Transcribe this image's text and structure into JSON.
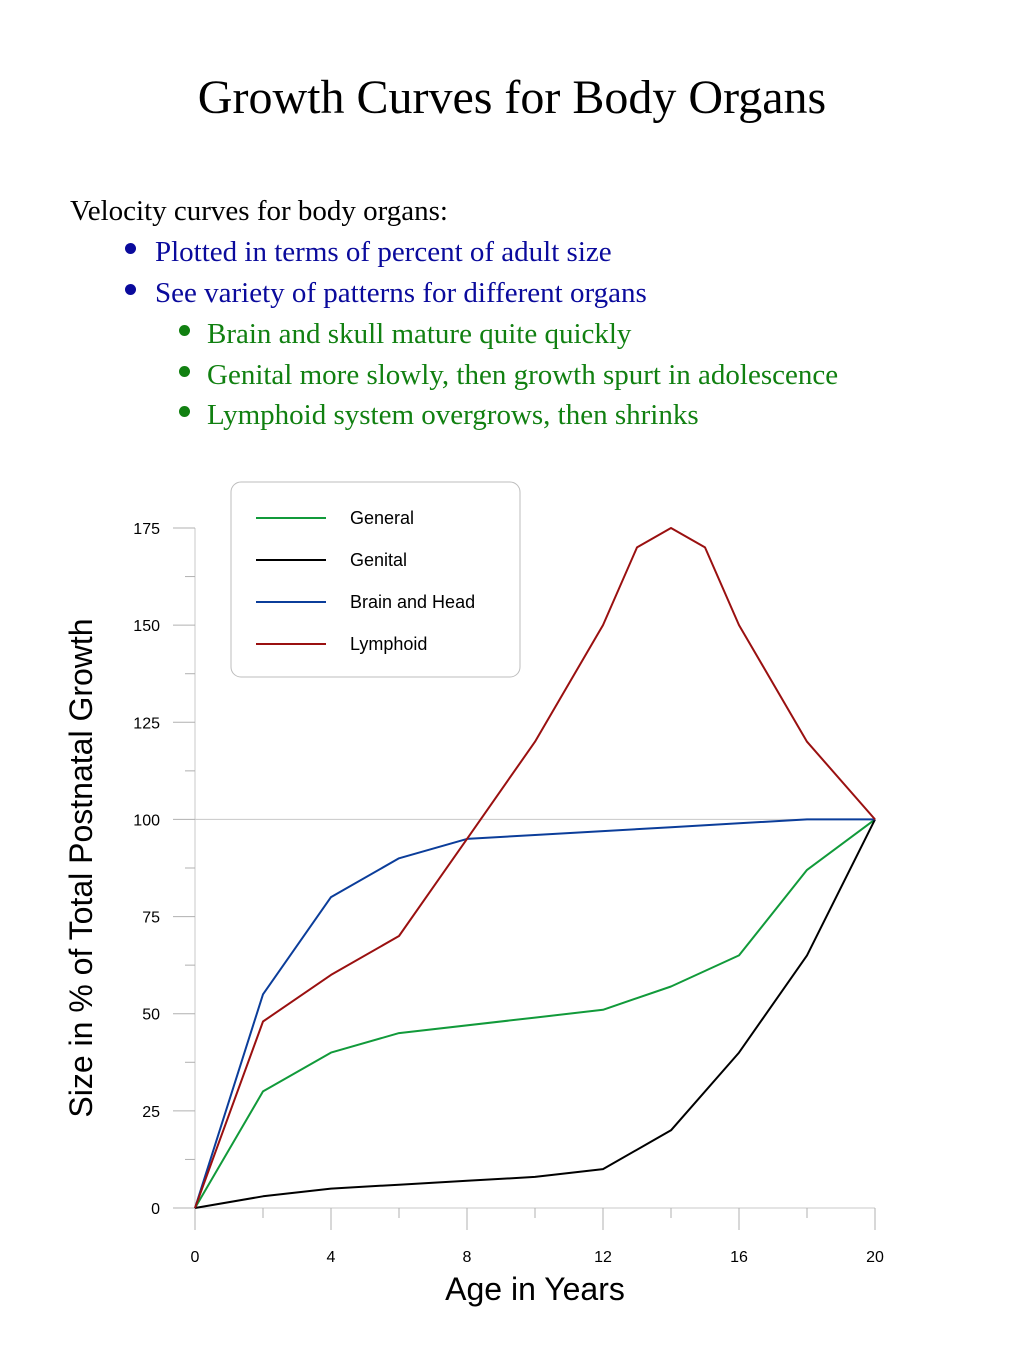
{
  "slide": {
    "title": "Growth Curves for Body Organs",
    "intro": "Velocity curves for body organs:",
    "bullets": [
      {
        "text": "Plotted in terms of percent of adult size",
        "level": 1
      },
      {
        "text": "See variety of patterns for different organs",
        "level": 1
      },
      {
        "text": "Brain and skull mature quite quickly",
        "level": 2
      },
      {
        "text": "Genital more slowly, then growth spurt in adolescence",
        "level": 2
      },
      {
        "text": "Lymphoid system overgrows, then shrinks",
        "level": 2
      }
    ],
    "colors": {
      "level1": "#0a0a9c",
      "level2": "#118011",
      "text": "#000000"
    }
  },
  "chart_data": {
    "type": "line",
    "title": "",
    "xlabel": "Age in Years",
    "ylabel": "Size in % of Total Postnatal Growth",
    "xlim": [
      0,
      20
    ],
    "ylim": [
      0,
      175
    ],
    "x_ticks": [
      0,
      4,
      8,
      12,
      16,
      20
    ],
    "y_ticks": [
      0,
      25,
      50,
      75,
      100,
      125,
      150,
      175
    ],
    "reference_line_y": 100,
    "legend_position": "top-left",
    "series": [
      {
        "name": "General",
        "color": "#119a3a",
        "x": [
          0,
          2,
          4,
          6,
          10,
          12,
          14,
          16,
          18,
          20
        ],
        "y": [
          0,
          30,
          40,
          45,
          49,
          51,
          57,
          65,
          87,
          100
        ]
      },
      {
        "name": "Genital",
        "color": "#000000",
        "x": [
          0,
          2,
          4,
          6,
          8,
          10,
          12,
          14,
          16,
          18,
          20
        ],
        "y": [
          0,
          3,
          5,
          6,
          7,
          8,
          10,
          20,
          40,
          65,
          100
        ]
      },
      {
        "name": "Brain and Head",
        "color": "#0b3d9a",
        "x": [
          0,
          2,
          4,
          6,
          8,
          10,
          12,
          14,
          16,
          18,
          20
        ],
        "y": [
          0,
          55,
          80,
          90,
          95,
          96,
          97,
          98,
          99,
          100,
          100
        ]
      },
      {
        "name": "Lymphoid",
        "color": "#9a1010",
        "x": [
          0,
          2,
          4,
          6,
          8,
          10,
          12,
          13,
          14,
          15,
          16,
          18,
          20
        ],
        "y": [
          0,
          48,
          60,
          70,
          95,
          120,
          150,
          170,
          175,
          170,
          150,
          120,
          100
        ]
      }
    ]
  }
}
